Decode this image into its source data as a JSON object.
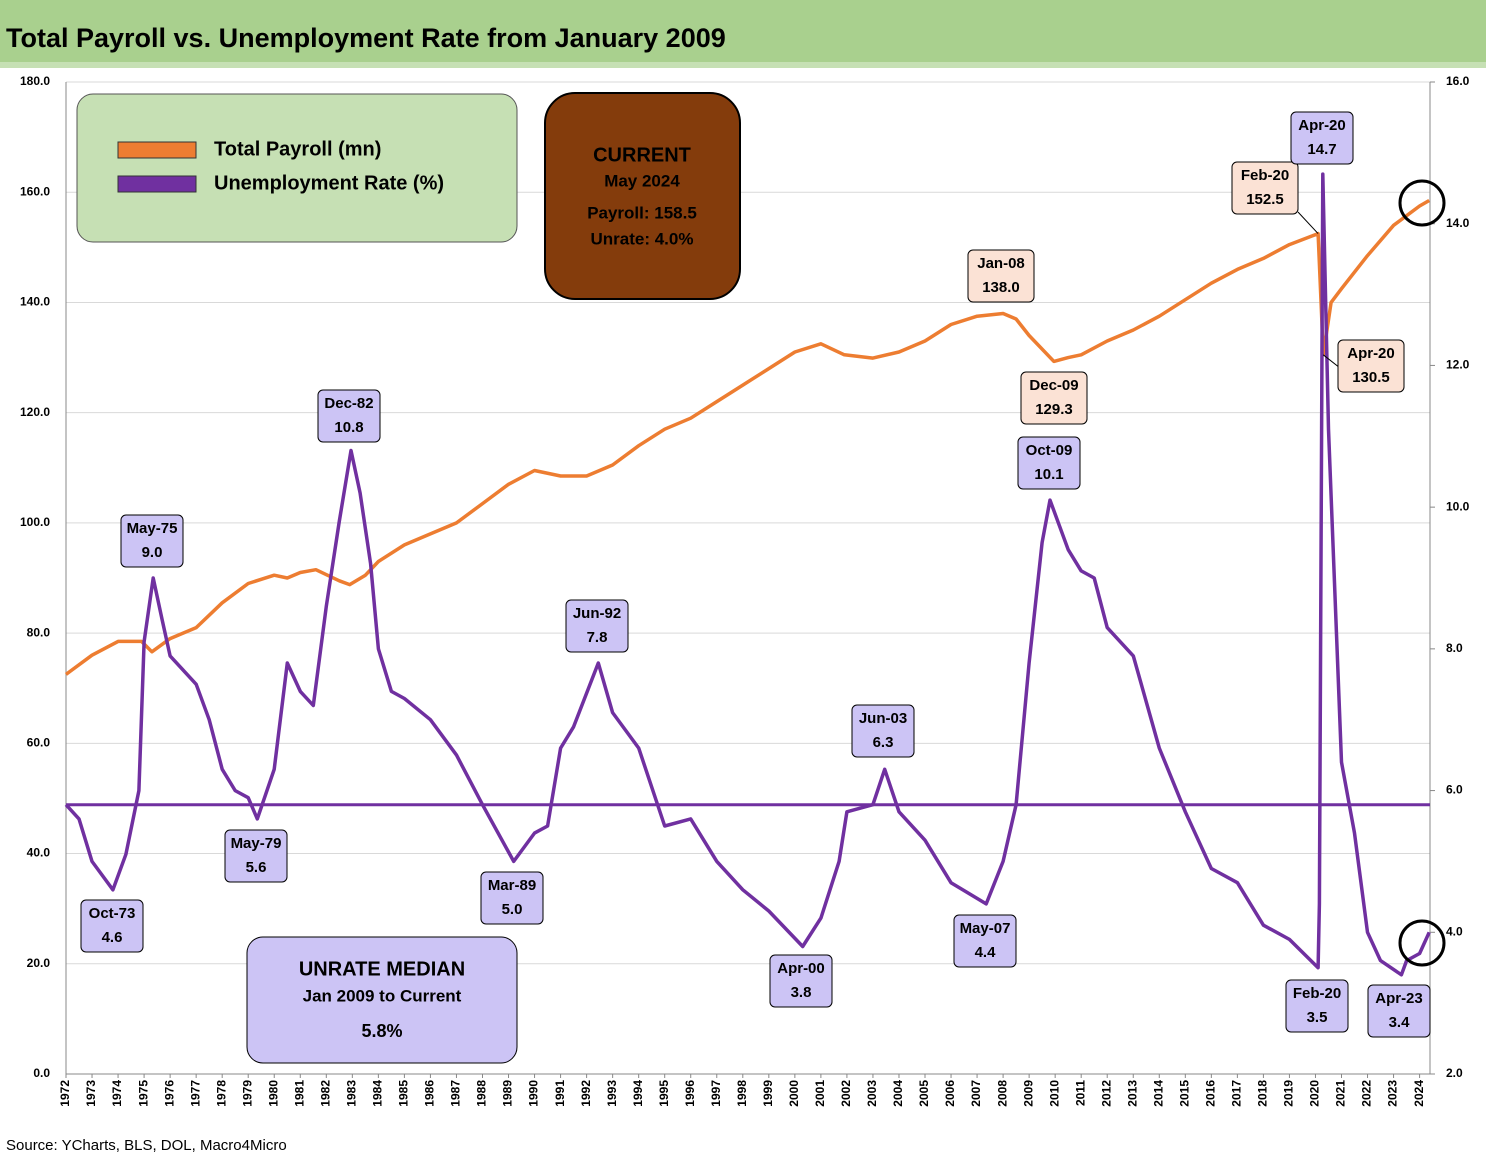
{
  "chart_data": {
    "type": "line",
    "title": "Total Payroll vs. Unemployment Rate from January 2009",
    "source": "Source: YCharts, BLS, DOL, Macro4Micro",
    "xlim": [
      1972,
      2024.4
    ],
    "xticks": [
      1972,
      1973,
      1974,
      1975,
      1976,
      1977,
      1978,
      1979,
      1980,
      1981,
      1982,
      1983,
      1984,
      1985,
      1986,
      1987,
      1988,
      1989,
      1990,
      1991,
      1992,
      1993,
      1994,
      1995,
      1996,
      1997,
      1998,
      1999,
      2000,
      2001,
      2002,
      2003,
      2004,
      2005,
      2006,
      2007,
      2008,
      2009,
      2010,
      2011,
      2012,
      2013,
      2014,
      2015,
      2016,
      2017,
      2018,
      2019,
      2020,
      2021,
      2022,
      2023,
      2024
    ],
    "ylim": [
      0,
      180
    ],
    "yticks": [
      {
        "value": 0,
        "label": "0.0"
      },
      {
        "value": 20,
        "label": "20.0"
      },
      {
        "value": 40,
        "label": "40.0"
      },
      {
        "value": 60,
        "label": "60.0"
      },
      {
        "value": 80,
        "label": "80.0"
      },
      {
        "value": 100,
        "label": "100.0"
      },
      {
        "value": 120,
        "label": "120.0"
      },
      {
        "value": 140,
        "label": "140.0"
      },
      {
        "value": 160,
        "label": "160.0"
      },
      {
        "value": 180,
        "label": "180.0"
      }
    ],
    "y2lim": [
      2,
      16
    ],
    "y2ticks": [
      {
        "value": 2,
        "label": "2.0"
      },
      {
        "value": 4,
        "label": "4.0"
      },
      {
        "value": 6,
        "label": "6.0"
      },
      {
        "value": 8,
        "label": "8.0"
      },
      {
        "value": 10,
        "label": "10.0"
      },
      {
        "value": 12,
        "label": "12.0"
      },
      {
        "value": 14,
        "label": "14.0"
      },
      {
        "value": 16,
        "label": "16.0"
      }
    ],
    "grid": true,
    "series": [
      {
        "name": "Total Payroll (mn)",
        "color": "#ed7d31",
        "x": [
          1972,
          1973,
          1974,
          1974.9,
          1975.3,
          1976,
          1977,
          1978,
          1979,
          1980,
          1980.5,
          1981,
          1981.6,
          1982.5,
          1982.9,
          1983.5,
          1984,
          1985,
          1986,
          1987,
          1988,
          1989,
          1990,
          1991,
          1992,
          1993,
          1994,
          1995,
          1996,
          1997,
          1998,
          1999,
          2000,
          2001,
          2001.9,
          2003,
          2004,
          2005,
          2006,
          2007,
          2008,
          2008.5,
          2009,
          2009.95,
          2010.5,
          2011,
          2012,
          2013,
          2014,
          2015,
          2016,
          2017,
          2018,
          2019,
          2020.1,
          2020.3,
          2020.6,
          2021,
          2022,
          2023,
          2024,
          2024.37
        ],
        "values": [
          72.5,
          76,
          78.5,
          78.5,
          76.6,
          79,
          81,
          85.5,
          89,
          90.5,
          90,
          91,
          91.5,
          89.5,
          88.8,
          90.5,
          93,
          96,
          98,
          100,
          103.5,
          107,
          109.5,
          108.5,
          108.5,
          110.5,
          114,
          117,
          119,
          122,
          125,
          128,
          131,
          132.5,
          130.5,
          129.9,
          131,
          133,
          136,
          137.5,
          138,
          137,
          134,
          129.3,
          130,
          130.5,
          133,
          135,
          137.5,
          140.5,
          143.5,
          146,
          148,
          150.5,
          152.5,
          130.5,
          140,
          142.5,
          148.5,
          154,
          157.5,
          158.5
        ]
      },
      {
        "name": "Unemployment Rate (%)",
        "color": "#7030a0",
        "axis": "y2",
        "x": [
          1972,
          1972.5,
          1973,
          1973.8,
          1974.3,
          1974.8,
          1975,
          1975.35,
          1975.7,
          1976,
          1976.5,
          1977,
          1977.5,
          1978,
          1978.5,
          1979,
          1979.35,
          1980,
          1980.5,
          1981,
          1981.5,
          1982,
          1982.5,
          1982.95,
          1983.3,
          1983.7,
          1984,
          1984.5,
          1985,
          1986,
          1987,
          1988,
          1989.2,
          1990,
          1990.5,
          1991,
          1991.5,
          1992.45,
          1993,
          1994,
          1995,
          1996,
          1997,
          1998,
          1999,
          2000.3,
          2001,
          2001.7,
          2002,
          2003,
          2003.45,
          2004,
          2005,
          2006,
          2007.35,
          2008,
          2008.5,
          2009,
          2009.5,
          2009.8,
          2010.5,
          2011,
          2011.5,
          2012,
          2013,
          2014,
          2015,
          2016,
          2017,
          2018,
          2019,
          2020.1,
          2020.15,
          2020.28,
          2020.5,
          2021,
          2021.5,
          2022,
          2022.5,
          2023.3,
          2023.5,
          2024,
          2024.37
        ],
        "values": [
          5.8,
          5.6,
          5.0,
          4.6,
          5.1,
          6.0,
          8.1,
          9.0,
          8.4,
          7.9,
          7.7,
          7.5,
          7.0,
          6.3,
          6.0,
          5.9,
          5.6,
          6.3,
          7.8,
          7.4,
          7.2,
          8.6,
          9.8,
          10.8,
          10.2,
          9.2,
          8.0,
          7.4,
          7.3,
          7.0,
          6.5,
          5.8,
          5.0,
          5.4,
          5.5,
          6.6,
          6.9,
          7.8,
          7.1,
          6.6,
          5.5,
          5.6,
          5.0,
          4.6,
          4.3,
          3.8,
          4.2,
          5.0,
          5.7,
          5.8,
          6.3,
          5.7,
          5.3,
          4.7,
          4.4,
          5.0,
          5.8,
          7.8,
          9.5,
          10.1,
          9.4,
          9.1,
          9.0,
          8.3,
          7.9,
          6.6,
          5.7,
          4.9,
          4.7,
          4.1,
          3.9,
          3.5,
          4.4,
          14.7,
          11.1,
          6.4,
          5.4,
          4.0,
          3.6,
          3.4,
          3.6,
          3.7,
          4.0
        ]
      }
    ],
    "unrate_median": {
      "title": "UNRATE MEDIAN",
      "period": "Jan 2009 to Current",
      "value": 5.8,
      "value_label": "5.8%",
      "color": "#7030a0"
    },
    "current": {
      "title": "CURRENT",
      "date": "May 2024",
      "lines": [
        "Payroll: 158.5",
        "Unrate: 4.0%"
      ]
    },
    "annotations": [
      {
        "lines": [
          "Oct-73",
          "4.6"
        ],
        "color": "#ccc4f5"
      },
      {
        "lines": [
          "May-75",
          "9.0"
        ],
        "color": "#ccc4f5"
      },
      {
        "lines": [
          "May-79",
          "5.6"
        ],
        "color": "#ccc4f5"
      },
      {
        "lines": [
          "Dec-82",
          "10.8"
        ],
        "color": "#ccc4f5"
      },
      {
        "lines": [
          "Mar-89",
          "5.0"
        ],
        "color": "#ccc4f5"
      },
      {
        "lines": [
          "Jun-92",
          "7.8"
        ],
        "color": "#ccc4f5"
      },
      {
        "lines": [
          "Apr-00",
          "3.8"
        ],
        "color": "#ccc4f5"
      },
      {
        "lines": [
          "Jun-03",
          "6.3"
        ],
        "color": "#ccc4f5"
      },
      {
        "lines": [
          "Oct-09",
          "10.1"
        ],
        "color": "#ccc4f5"
      },
      {
        "lines": [
          "May-07",
          "4.4"
        ],
        "color": "#ccc4f5"
      },
      {
        "lines": [
          "Jan-08",
          "138.0"
        ],
        "color": "#fbe2d5"
      },
      {
        "lines": [
          "Dec-09",
          "129.3"
        ],
        "color": "#fbe2d5"
      },
      {
        "lines": [
          "Feb-20",
          "152.5"
        ],
        "color": "#fbe2d5"
      },
      {
        "lines": [
          "Apr-20",
          "14.7"
        ],
        "color": "#ccc4f5"
      },
      {
        "lines": [
          "Apr-20",
          "130.5"
        ],
        "color": "#fbe2d5"
      },
      {
        "lines": [
          "Feb-20",
          "3.5"
        ],
        "color": "#ccc4f5"
      },
      {
        "lines": [
          "Apr-23",
          "3.4"
        ],
        "color": "#ccc4f5"
      }
    ]
  }
}
